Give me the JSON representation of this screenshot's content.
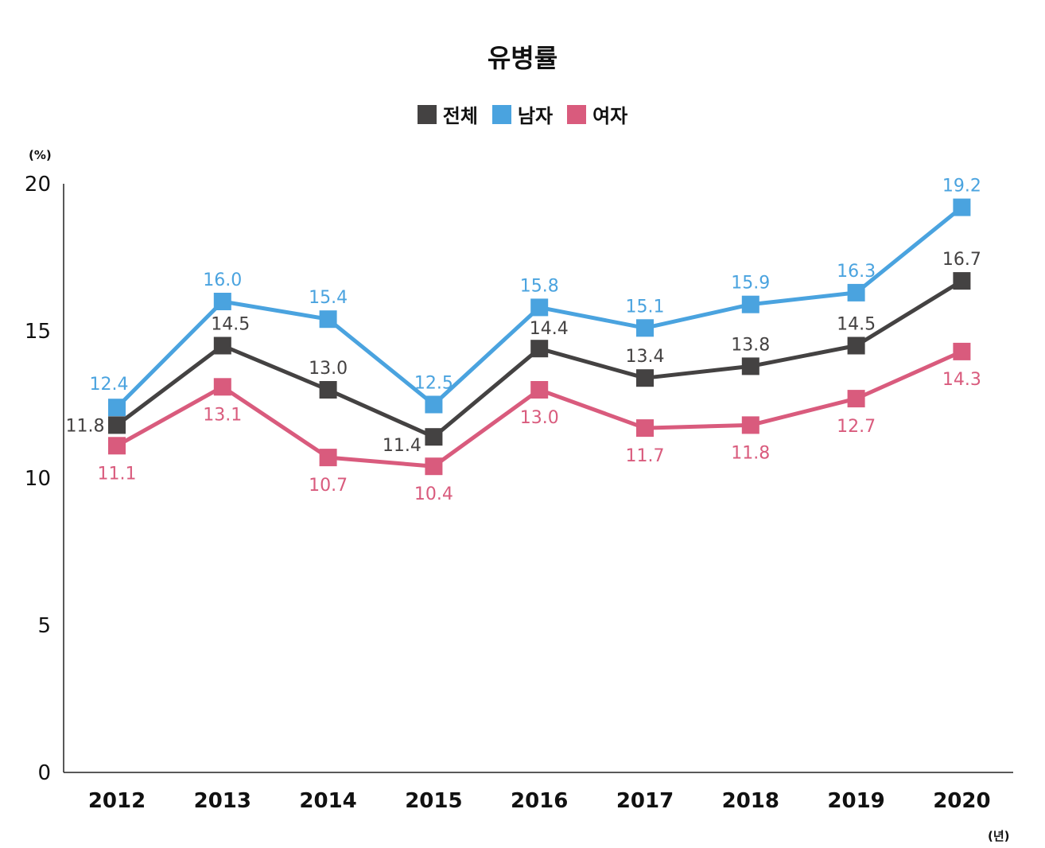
{
  "chart_data": {
    "type": "line",
    "title": "유병률",
    "y_unit": "(%)",
    "x_unit": "(년)",
    "categories": [
      "2012",
      "2013",
      "2014",
      "2015",
      "2016",
      "2017",
      "2018",
      "2019",
      "2020"
    ],
    "yticks": [
      "0",
      "5",
      "10",
      "15",
      "20"
    ],
    "ylim": [
      0,
      20
    ],
    "grid": false,
    "legend_position": "top-center",
    "series": [
      {
        "name": "전체",
        "color": "#444242",
        "values": [
          11.8,
          14.5,
          13.0,
          11.4,
          14.4,
          13.4,
          13.8,
          14.5,
          16.7
        ],
        "labels": [
          "11.8",
          "14.5",
          "13.0",
          "11.4",
          "14.4",
          "13.4",
          "13.8",
          "14.5",
          "16.7"
        ]
      },
      {
        "name": "남자",
        "color": "#4aa3df",
        "values": [
          12.4,
          16.0,
          15.4,
          12.5,
          15.8,
          15.1,
          15.9,
          16.3,
          19.2
        ],
        "labels": [
          "12.4",
          "16.0",
          "15.4",
          "12.5",
          "15.8",
          "15.1",
          "15.9",
          "16.3",
          "19.2"
        ]
      },
      {
        "name": "여자",
        "color": "#d95b7d",
        "values": [
          11.1,
          13.1,
          10.7,
          10.4,
          13.0,
          11.7,
          11.8,
          12.7,
          14.3
        ],
        "labels": [
          "11.1",
          "13.1",
          "10.7",
          "10.4",
          "13.0",
          "11.7",
          "11.8",
          "12.7",
          "14.3"
        ]
      }
    ]
  }
}
